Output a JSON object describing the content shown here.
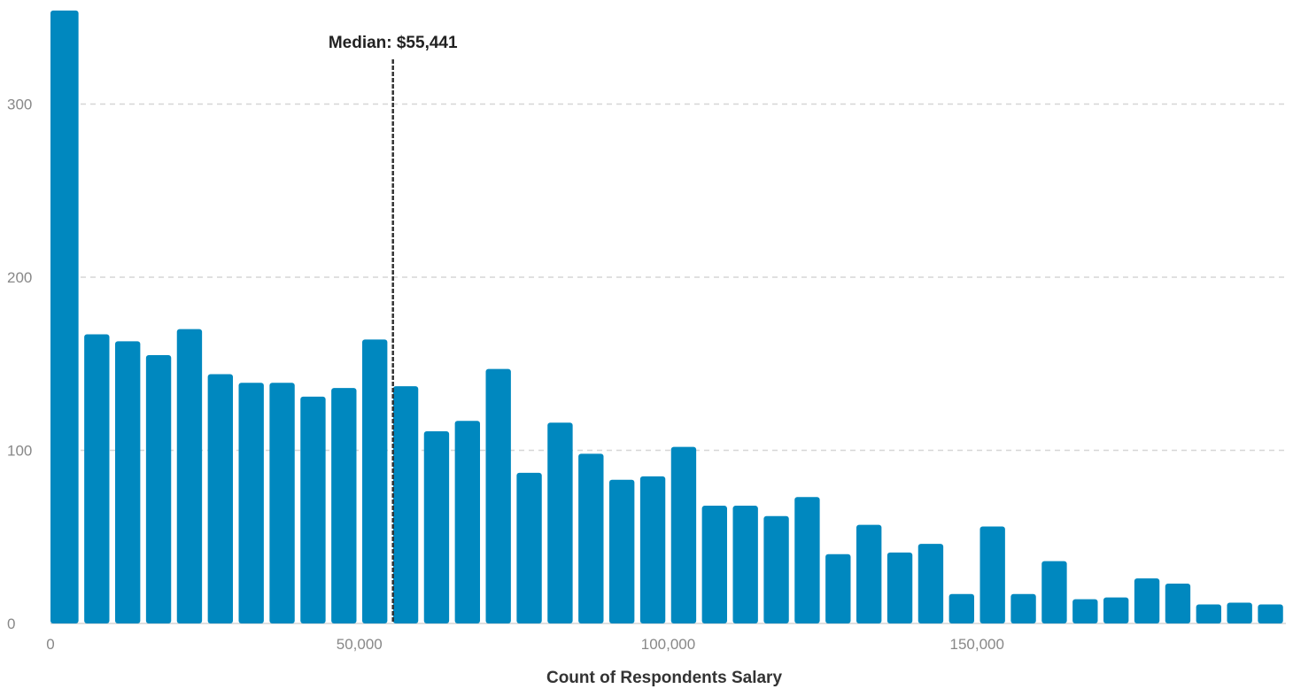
{
  "chart_data": {
    "type": "bar",
    "title": "",
    "xlabel": "Count of Respondents Salary",
    "ylabel": "",
    "bin_width": 5000,
    "bin_starts": [
      0,
      5000,
      10000,
      15000,
      20000,
      25000,
      30000,
      35000,
      40000,
      45000,
      50000,
      55000,
      60000,
      65000,
      70000,
      75000,
      80000,
      85000,
      90000,
      95000,
      100000,
      105000,
      110000,
      115000,
      120000,
      125000,
      130000,
      135000,
      140000,
      145000,
      150000,
      155000,
      160000,
      165000,
      170000,
      175000,
      180000,
      185000,
      190000,
      195000
    ],
    "values": [
      354,
      167,
      163,
      155,
      170,
      144,
      139,
      139,
      131,
      136,
      164,
      137,
      111,
      117,
      147,
      87,
      116,
      98,
      83,
      85,
      102,
      68,
      68,
      62,
      73,
      40,
      57,
      41,
      46,
      17,
      56,
      17,
      36,
      14,
      15,
      26,
      23,
      11,
      12,
      11
    ],
    "xlim": [
      0,
      200000
    ],
    "ylim": [
      0,
      354
    ],
    "x_ticks": [
      0,
      50000,
      100000,
      150000
    ],
    "x_tick_labels": [
      "0",
      "50,000",
      "100,000",
      "150,000"
    ],
    "y_ticks": [
      0,
      100,
      200,
      300
    ],
    "y_tick_labels": [
      "0",
      "100",
      "200",
      "300"
    ],
    "grid": "horizontal-dashed",
    "bar_color": "#0088bf",
    "median": {
      "value": 55441,
      "label": "Median: $55,441"
    }
  }
}
